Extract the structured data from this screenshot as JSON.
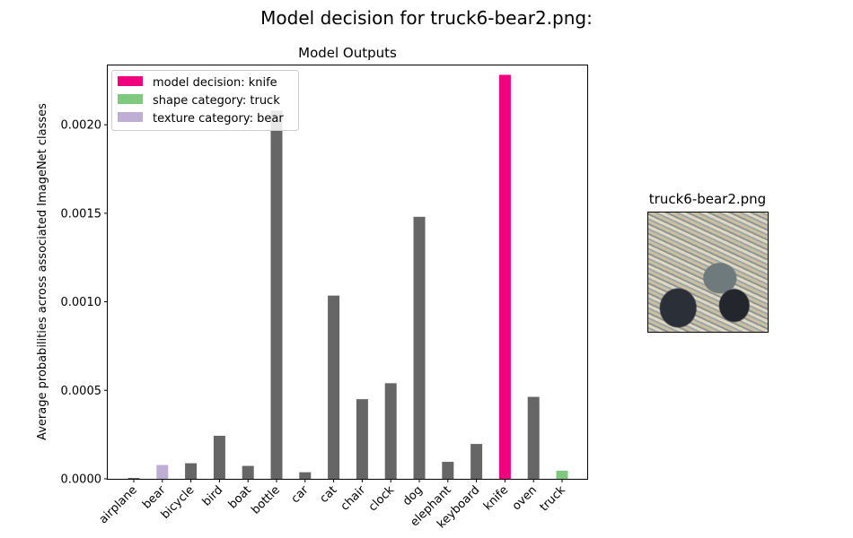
{
  "suptitle": "Model decision for truck6-bear2.png:",
  "thumbnail": {
    "title": "truck6-bear2.png"
  },
  "colors": {
    "default": "#666666",
    "decision": "#f0027f",
    "shape": "#7fc97f",
    "texture": "#beaed4"
  },
  "chart_data": {
    "type": "bar",
    "title": "Model Outputs",
    "xlabel": "",
    "ylabel": "Average probabilities across associated ImageNet classes",
    "categories": [
      "airplane",
      "bear",
      "bicycle",
      "bird",
      "boat",
      "bottle",
      "car",
      "cat",
      "chair",
      "clock",
      "dog",
      "elephant",
      "keyboard",
      "knife",
      "oven",
      "truck"
    ],
    "values": [
      5e-06,
      7.8e-05,
      8.8e-05,
      0.000243,
      7.3e-05,
      0.00208,
      3.7e-05,
      0.001035,
      0.00045,
      0.00054,
      0.00148,
      9.6e-05,
      0.000197,
      0.002282,
      0.000463,
      4.6e-05
    ],
    "bar_roles": [
      "default",
      "texture",
      "default",
      "default",
      "default",
      "default",
      "default",
      "default",
      "default",
      "default",
      "default",
      "default",
      "default",
      "decision",
      "default",
      "shape"
    ],
    "ylim": [
      0,
      0.00234
    ],
    "yticks": [
      0.0,
      0.0005,
      0.001,
      0.0015,
      0.002
    ],
    "ytick_labels": [
      "0.0000",
      "0.0005",
      "0.0010",
      "0.0015",
      "0.0020"
    ],
    "grid": false,
    "legend_placement": "upper-left",
    "legend": [
      {
        "label": "model decision: knife",
        "role": "decision"
      },
      {
        "label": "shape category: truck",
        "role": "shape"
      },
      {
        "label": "texture category: bear",
        "role": "texture"
      }
    ]
  }
}
